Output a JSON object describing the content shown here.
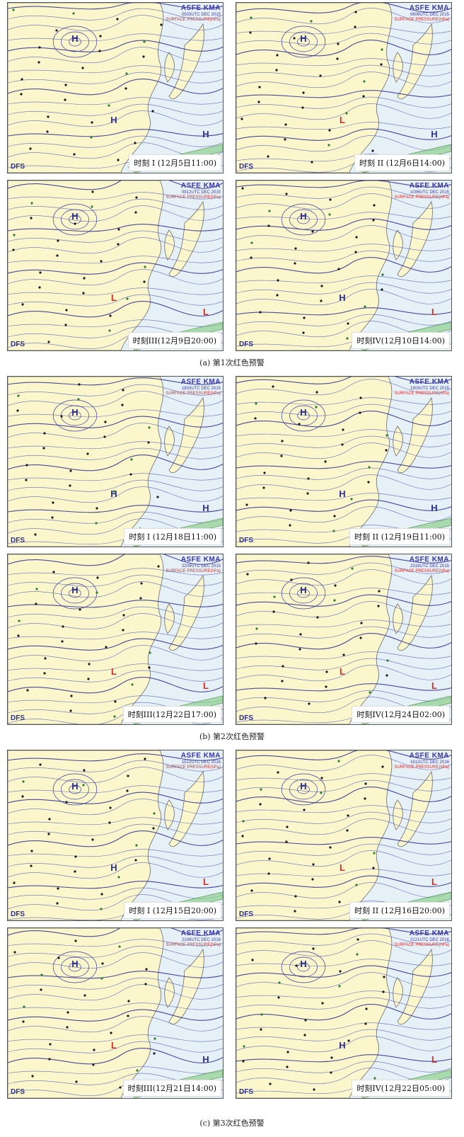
{
  "groups": [
    {
      "caption": "(a) 第1次红色预警",
      "panels": [
        {
          "stamp_line1": "ASFE  KMA",
          "stamp_line2": "0503UTC DEC 2015",
          "stamp_line3": "SURFACE PRESSURE(hPa)",
          "dfs": "DFS",
          "time_label": "时刻 I (12月5日11:00)",
          "marks": [
            {
              "t": "H",
              "c": "#2c2f8e"
            },
            {
              "t": "H",
              "c": "#2c2f8e"
            },
            {
              "t": "H",
              "c": "#2c2f8e"
            }
          ]
        },
        {
          "stamp_line1": "ASFE  KMA",
          "stamp_line2": "0606UTC DEC 2015",
          "stamp_line3": "SURFACE PRESSURE(hPa)",
          "dfs": "DFS",
          "time_label": "时刻 II (12月6日14:00)",
          "marks": [
            {
              "t": "H",
              "c": "#2c2f8e"
            },
            {
              "t": "L",
              "c": "#d23030"
            },
            {
              "t": "H",
              "c": "#2c2f8e"
            }
          ]
        },
        {
          "stamp_line1": "ASFE  KMA",
          "stamp_line2": "0912UTC DEC 2015",
          "stamp_line3": "SURFACE PRESSURE(hPa)",
          "dfs": "DFS",
          "time_label": "时刻III(12月9日20:00)",
          "marks": [
            {
              "t": "H",
              "c": "#2c2f8e"
            },
            {
              "t": "L",
              "c": "#d23030"
            },
            {
              "t": "L",
              "c": "#d23030"
            }
          ]
        },
        {
          "stamp_line1": "ASFE  KMA",
          "stamp_line2": "1006UTC DEC 2015",
          "stamp_line3": "SURFACE PRESSURE(hPa)",
          "dfs": "DFS",
          "time_label": "时刻IV(12月10日14:00)",
          "marks": [
            {
              "t": "H",
              "c": "#2c2f8e"
            },
            {
              "t": "H",
              "c": "#2c2f8e"
            },
            {
              "t": "L",
              "c": "#d23030"
            }
          ]
        }
      ]
    },
    {
      "caption": "(b) 第2次红色预警",
      "panels": [
        {
          "stamp_line1": "ASFE  KMA",
          "stamp_line2": "1803UTC DEC 2015",
          "stamp_line3": "SURFACE PRESSURE(hPa)",
          "dfs": "DFS",
          "time_label": "时刻 I (12月18日11:00)",
          "marks": [
            {
              "t": "H",
              "c": "#2c2f8e"
            },
            {
              "t": "H",
              "c": "#2c2f8e"
            },
            {
              "t": "H",
              "c": "#2c2f8e"
            }
          ]
        },
        {
          "stamp_line1": "ASFE  KMA",
          "stamp_line2": "1903UTC DEC 2015",
          "stamp_line3": "SURFACE PRESSURE(hPa)",
          "dfs": "DFS",
          "time_label": "时刻 II (12月19日11:00)",
          "marks": [
            {
              "t": "H",
              "c": "#2c2f8e"
            },
            {
              "t": "H",
              "c": "#2c2f8e"
            },
            {
              "t": "H",
              "c": "#2c2f8e"
            }
          ]
        },
        {
          "stamp_line1": "ASFE  KMA",
          "stamp_line2": "2209UTC DEC 2015",
          "stamp_line3": "SURFACE PRESSURE(hPa)",
          "dfs": "DFS",
          "time_label": "时刻III(12月22日17:00)",
          "marks": [
            {
              "t": "H",
              "c": "#2c2f8e"
            },
            {
              "t": "L",
              "c": "#d23030"
            },
            {
              "t": "L",
              "c": "#d23030"
            }
          ]
        },
        {
          "stamp_line1": "ASFE  KMA",
          "stamp_line2": "2318UTC DEC 2015",
          "stamp_line3": "SURFACE PRESSURE(hPa)",
          "dfs": "DFS",
          "time_label": "时刻IV(12月24日02:00)",
          "marks": [
            {
              "t": "H",
              "c": "#2c2f8e"
            },
            {
              "t": "L",
              "c": "#d23030"
            },
            {
              "t": "L",
              "c": "#d23030"
            }
          ]
        }
      ]
    },
    {
      "caption": "(c) 第3次红色预警",
      "panels": [
        {
          "stamp_line1": "ASFE  KMA",
          "stamp_line2": "1512UTC DEC 2016",
          "stamp_line3": "SURFACE PRESSURE(hPa)",
          "dfs": "DFS",
          "time_label": "时刻 I (12月15日20:00)",
          "marks": [
            {
              "t": "H",
              "c": "#2c2f8e"
            },
            {
              "t": "H",
              "c": "#2c2f8e"
            },
            {
              "t": "L",
              "c": "#d23030"
            }
          ]
        },
        {
          "stamp_line1": "ASFE  KMA",
          "stamp_line2": "1612UTC DEC 2016",
          "stamp_line3": "SURFACE PRESSURE(hPa)",
          "dfs": "DFS",
          "time_label": "时刻 II (12月16日20:00)",
          "marks": [
            {
              "t": "H",
              "c": "#2c2f8e"
            },
            {
              "t": "L",
              "c": "#d23030"
            },
            {
              "t": "L",
              "c": "#d23030"
            }
          ]
        },
        {
          "stamp_line1": "ASFE  KMA",
          "stamp_line2": "2106UTC DEC 2016",
          "stamp_line3": "SURFACE PRESSURE(hPa)",
          "dfs": "DFS",
          "time_label": "时刻III(12月21日14:00)",
          "marks": [
            {
              "t": "H",
              "c": "#2c2f8e"
            },
            {
              "t": "L",
              "c": "#d23030"
            },
            {
              "t": "H",
              "c": "#2c2f8e"
            }
          ]
        },
        {
          "stamp_line1": "ASFE  KMA",
          "stamp_line2": "2121UTC DEC 2016",
          "stamp_line3": "SURFACE PRESSURE(hPa)",
          "dfs": "DFS",
          "time_label": "时刻IV(12月22日05:00)",
          "marks": [
            {
              "t": "H",
              "c": "#2c2f8e"
            },
            {
              "t": "H",
              "c": "#2c2f8e"
            },
            {
              "t": "L",
              "c": "#d23030"
            }
          ]
        }
      ]
    }
  ]
}
